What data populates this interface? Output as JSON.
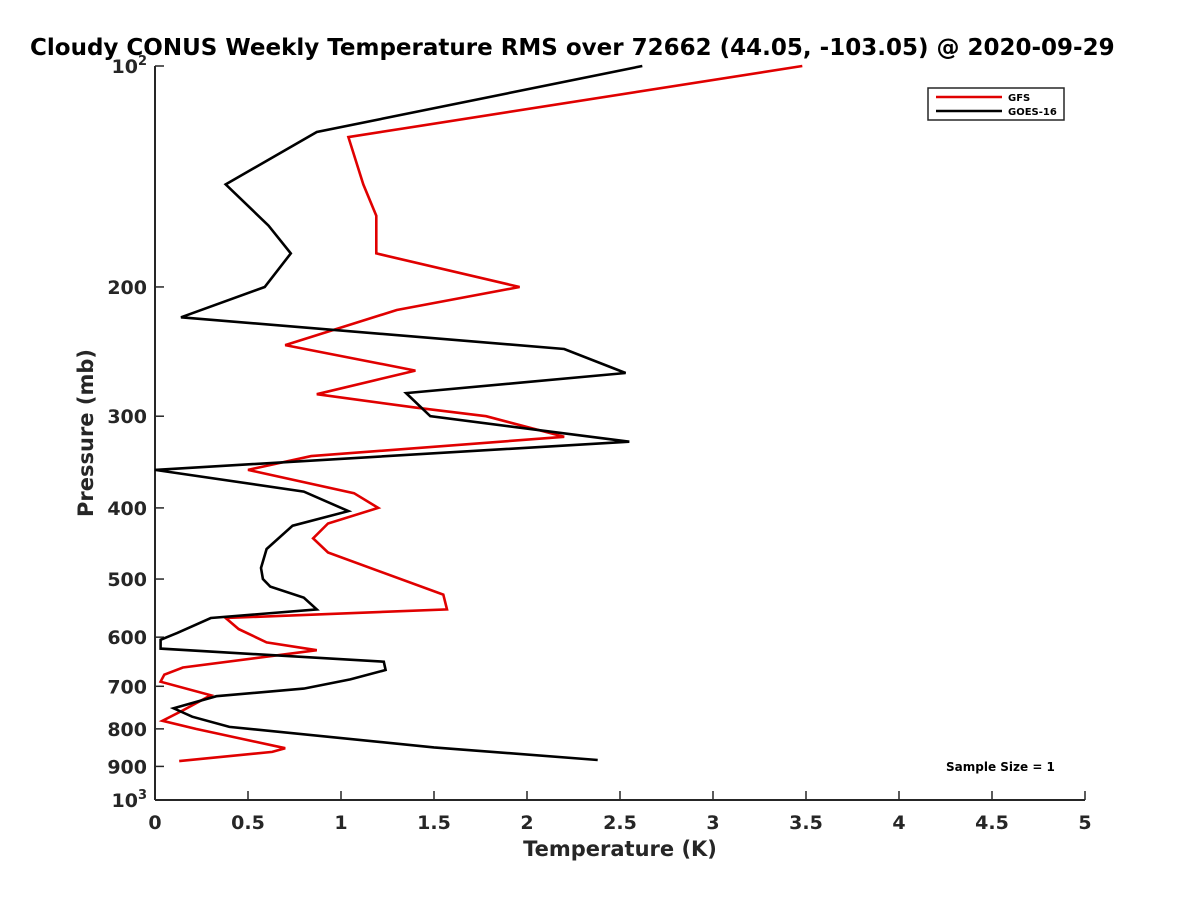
{
  "chart_data": {
    "type": "line",
    "title": "Cloudy CONUS Weekly Temperature RMS over 72662 (44.05, -103.05) @ 2020-09-29",
    "xlabel": "Temperature (K)",
    "ylabel": "Pressure (mb)",
    "xlim": [
      0,
      5
    ],
    "ylim": [
      100,
      1000
    ],
    "y_scale": "log",
    "y_reversed": true,
    "grid": false,
    "legend_position": "top-right",
    "x_ticks": [
      {
        "value": 0,
        "label": "0"
      },
      {
        "value": 0.5,
        "label": "0.5"
      },
      {
        "value": 1,
        "label": "1"
      },
      {
        "value": 1.5,
        "label": "1.5"
      },
      {
        "value": 2,
        "label": "2"
      },
      {
        "value": 2.5,
        "label": "2.5"
      },
      {
        "value": 3,
        "label": "3"
      },
      {
        "value": 3.5,
        "label": "3.5"
      },
      {
        "value": 4,
        "label": "4"
      },
      {
        "value": 4.5,
        "label": "4.5"
      },
      {
        "value": 5,
        "label": "5"
      }
    ],
    "y_ticks": [
      {
        "value": 100,
        "base": "10",
        "exp": "2"
      },
      {
        "value": 200,
        "label": "200"
      },
      {
        "value": 300,
        "label": "300"
      },
      {
        "value": 400,
        "label": "400"
      },
      {
        "value": 500,
        "label": "500"
      },
      {
        "value": 600,
        "label": "600"
      },
      {
        "value": 700,
        "label": "700"
      },
      {
        "value": 800,
        "label": "800"
      },
      {
        "value": 900,
        "label": "900"
      },
      {
        "value": 1000,
        "base": "10",
        "exp": "3"
      }
    ],
    "series": [
      {
        "name": "GFS",
        "color": "#e00000",
        "points": [
          {
            "x": 3.48,
            "y": 100
          },
          {
            "x": 1.04,
            "y": 125
          },
          {
            "x": 1.12,
            "y": 145
          },
          {
            "x": 1.19,
            "y": 160
          },
          {
            "x": 1.19,
            "y": 180
          },
          {
            "x": 1.96,
            "y": 200
          },
          {
            "x": 1.3,
            "y": 215
          },
          {
            "x": 0.7,
            "y": 240
          },
          {
            "x": 1.4,
            "y": 260
          },
          {
            "x": 0.87,
            "y": 280
          },
          {
            "x": 1.4,
            "y": 292
          },
          {
            "x": 1.78,
            "y": 300
          },
          {
            "x": 2.2,
            "y": 320
          },
          {
            "x": 0.84,
            "y": 340
          },
          {
            "x": 0.5,
            "y": 355
          },
          {
            "x": 1.07,
            "y": 382
          },
          {
            "x": 1.2,
            "y": 400
          },
          {
            "x": 0.93,
            "y": 420
          },
          {
            "x": 0.85,
            "y": 440
          },
          {
            "x": 0.93,
            "y": 460
          },
          {
            "x": 1.55,
            "y": 525
          },
          {
            "x": 1.57,
            "y": 550
          },
          {
            "x": 0.38,
            "y": 565
          },
          {
            "x": 0.45,
            "y": 585
          },
          {
            "x": 0.6,
            "y": 610
          },
          {
            "x": 0.87,
            "y": 625
          },
          {
            "x": 0.15,
            "y": 660
          },
          {
            "x": 0.05,
            "y": 675
          },
          {
            "x": 0.03,
            "y": 690
          },
          {
            "x": 0.3,
            "y": 720
          },
          {
            "x": 0.15,
            "y": 755
          },
          {
            "x": 0.04,
            "y": 780
          },
          {
            "x": 0.22,
            "y": 800
          },
          {
            "x": 0.7,
            "y": 850
          },
          {
            "x": 0.63,
            "y": 860
          },
          {
            "x": 0.13,
            "y": 885
          }
        ]
      },
      {
        "name": "GOES-16",
        "color": "#000000",
        "points": [
          {
            "x": 2.62,
            "y": 100
          },
          {
            "x": 0.87,
            "y": 123
          },
          {
            "x": 0.38,
            "y": 145
          },
          {
            "x": 0.61,
            "y": 165
          },
          {
            "x": 0.73,
            "y": 180
          },
          {
            "x": 0.59,
            "y": 200
          },
          {
            "x": 0.14,
            "y": 220
          },
          {
            "x": 2.2,
            "y": 243
          },
          {
            "x": 2.53,
            "y": 262
          },
          {
            "x": 1.35,
            "y": 279
          },
          {
            "x": 1.48,
            "y": 300
          },
          {
            "x": 2.55,
            "y": 325
          },
          {
            "x": 0.0,
            "y": 355
          },
          {
            "x": 0.8,
            "y": 380
          },
          {
            "x": 1.04,
            "y": 404
          },
          {
            "x": 0.74,
            "y": 423
          },
          {
            "x": 0.6,
            "y": 455
          },
          {
            "x": 0.57,
            "y": 483
          },
          {
            "x": 0.58,
            "y": 500
          },
          {
            "x": 0.62,
            "y": 512
          },
          {
            "x": 0.8,
            "y": 530
          },
          {
            "x": 0.87,
            "y": 550
          },
          {
            "x": 0.3,
            "y": 565
          },
          {
            "x": 0.12,
            "y": 592
          },
          {
            "x": 0.03,
            "y": 605
          },
          {
            "x": 0.03,
            "y": 622
          },
          {
            "x": 1.23,
            "y": 648
          },
          {
            "x": 1.24,
            "y": 665
          },
          {
            "x": 1.05,
            "y": 685
          },
          {
            "x": 0.8,
            "y": 705
          },
          {
            "x": 0.33,
            "y": 722
          },
          {
            "x": 0.1,
            "y": 750
          },
          {
            "x": 0.15,
            "y": 760
          },
          {
            "x": 0.2,
            "y": 770
          },
          {
            "x": 0.4,
            "y": 795
          },
          {
            "x": 1.5,
            "y": 848
          },
          {
            "x": 2.38,
            "y": 882
          }
        ]
      }
    ],
    "annotation": "Sample Size = 1"
  }
}
